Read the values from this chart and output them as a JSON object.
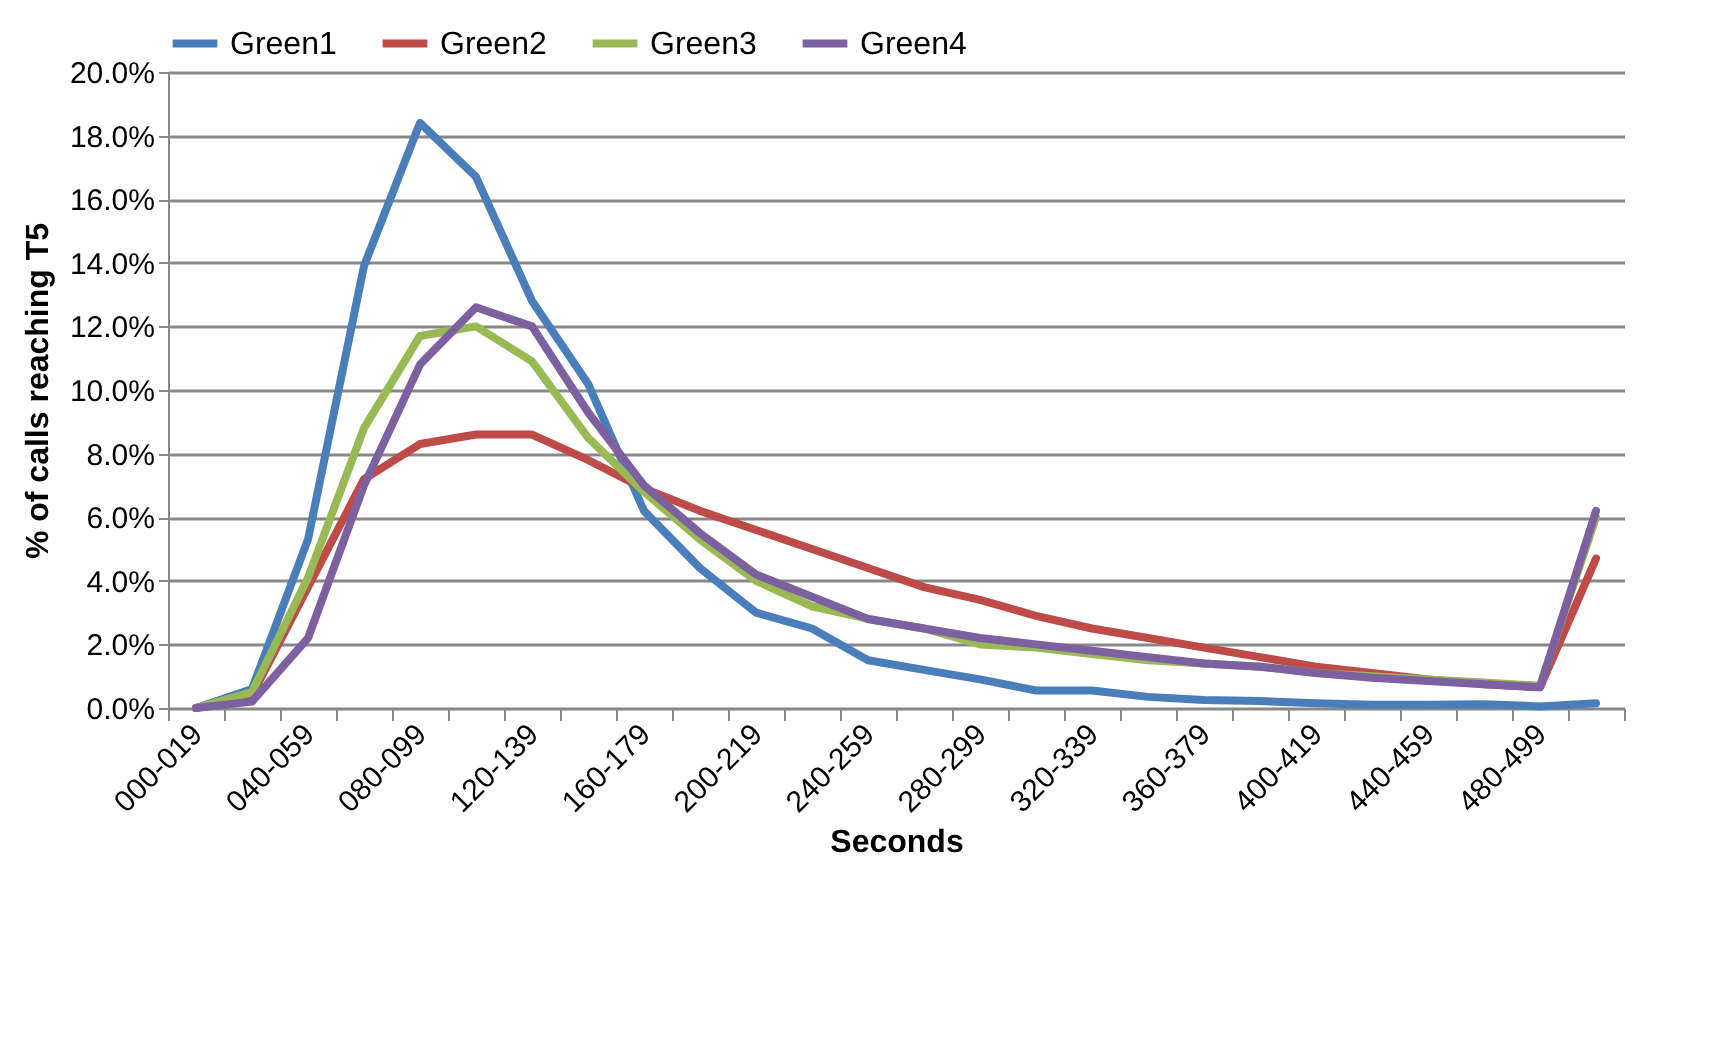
{
  "chart_data": {
    "type": "line",
    "xlabel": "Seconds",
    "ylabel": "% of calls reaching T5",
    "categories": [
      "000-019",
      null,
      "040-059",
      null,
      "080-099",
      null,
      "120-139",
      null,
      "160-179",
      null,
      "200-219",
      null,
      "240-259",
      null,
      "280-299",
      null,
      "320-339",
      null,
      "360-379",
      null,
      "400-419",
      null,
      "440-459",
      null,
      "480-499",
      null
    ],
    "series": [
      {
        "name": "Green1",
        "color": "#4a7ebb",
        "values": [
          0,
          0.6,
          5.3,
          13.9,
          18.4,
          16.7,
          12.8,
          10.2,
          6.2,
          4.4,
          3.0,
          2.5,
          1.5,
          1.2,
          0.9,
          0.55,
          0.55,
          0.35,
          0.25,
          0.22,
          0.15,
          0.1,
          0.1,
          0.12,
          0.05,
          0.15
        ]
      },
      {
        "name": "Green2",
        "color": "#be4b48",
        "values": [
          0,
          0.4,
          3.8,
          7.2,
          8.3,
          8.6,
          8.6,
          7.8,
          6.9,
          6.2,
          5.6,
          5.0,
          4.4,
          3.8,
          3.4,
          2.9,
          2.5,
          2.2,
          1.9,
          1.6,
          1.3,
          1.1,
          0.9,
          0.75,
          0.65,
          4.7
        ]
      },
      {
        "name": "Green3",
        "color": "#98b954",
        "values": [
          0,
          0.5,
          4.1,
          8.8,
          11.7,
          12.0,
          10.9,
          8.5,
          6.8,
          5.3,
          4.0,
          3.2,
          2.8,
          2.5,
          2.0,
          1.9,
          1.7,
          1.5,
          1.4,
          1.3,
          1.1,
          1.0,
          0.9,
          0.8,
          0.7,
          6.0
        ]
      },
      {
        "name": "Green4",
        "color": "#7d60a0",
        "values": [
          0,
          0.2,
          2.2,
          7.0,
          10.8,
          12.6,
          12.0,
          9.3,
          7.0,
          5.5,
          4.2,
          3.5,
          2.8,
          2.5,
          2.2,
          2.0,
          1.8,
          1.6,
          1.4,
          1.3,
          1.1,
          0.95,
          0.85,
          0.75,
          0.65,
          6.2
        ]
      }
    ],
    "ylim": [
      0,
      20
    ],
    "yticks": [
      {
        "value": 0,
        "label": "0.0%"
      },
      {
        "value": 2,
        "label": "2.0%"
      },
      {
        "value": 4,
        "label": "4.0%"
      },
      {
        "value": 6,
        "label": "6.0%"
      },
      {
        "value": 8,
        "label": "8.0%"
      },
      {
        "value": 10,
        "label": "10.0%"
      },
      {
        "value": 12,
        "label": "12.0%"
      },
      {
        "value": 14,
        "label": "14.0%"
      },
      {
        "value": 16,
        "label": "16.0%"
      },
      {
        "value": 18,
        "label": "18.0%"
      },
      {
        "value": 20,
        "label": "20.0%"
      }
    ],
    "grid": "y",
    "legend": "top",
    "marker": "none",
    "line_style": "solid"
  }
}
